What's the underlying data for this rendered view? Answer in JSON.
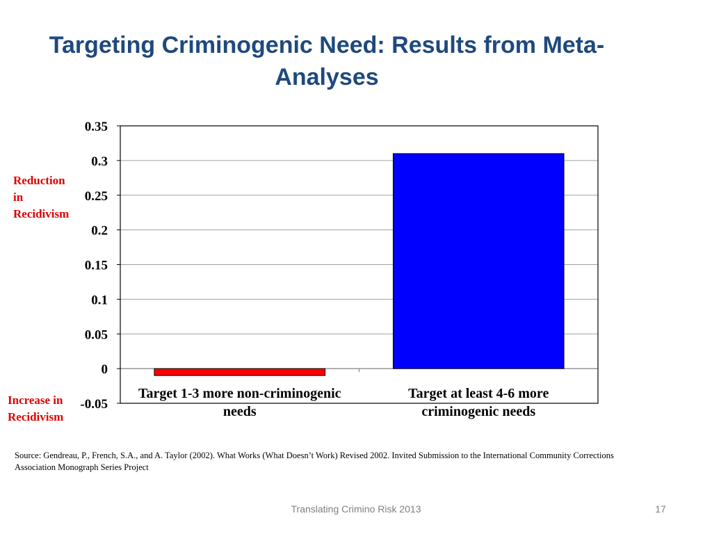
{
  "slide": {
    "title": "Targeting Criminogenic Need: Results from Meta-Analyses",
    "footer_center": "Translating Crimino Risk 2013",
    "page_number": "17",
    "source": "Source:  Gendreau, P., French, S.A., and A. Taylor (2002).  What Works (What Doesn’t Work) Revised 2002.  Invited Submission to the International Community Corrections Association Monograph Series Project"
  },
  "side_labels": {
    "top": "Reduction\nin\nRecidivism",
    "bottom": "Increase in\nRecidivism"
  },
  "colors": {
    "title": "#1f497d",
    "side_label": "#e00000",
    "footer": "#7f7f7f"
  },
  "chart_data": {
    "type": "bar",
    "categories": [
      "Target 1-3 more non-criminogenic needs",
      "Target at least 4-6 more criminogenic needs"
    ],
    "category_label_lines": [
      [
        "Target 1-3 more non-criminogenic",
        "needs"
      ],
      [
        "Target at least 4-6 more",
        "criminogenic needs"
      ]
    ],
    "values": [
      -0.01,
      0.31
    ],
    "bar_colors": [
      "#ff0000",
      "#0000ff"
    ],
    "ylim": [
      -0.05,
      0.35
    ],
    "yticks": [
      -0.05,
      0,
      0.05,
      0.1,
      0.15,
      0.2,
      0.25,
      0.3,
      0.35
    ],
    "ytick_labels": [
      "-0.05",
      "0",
      "0.05",
      "0.1",
      "0.15",
      "0.2",
      "0.25",
      "0.3",
      "0.35"
    ],
    "grid": true,
    "legend": "none",
    "title": "",
    "xlabel": "",
    "ylabel": ""
  }
}
